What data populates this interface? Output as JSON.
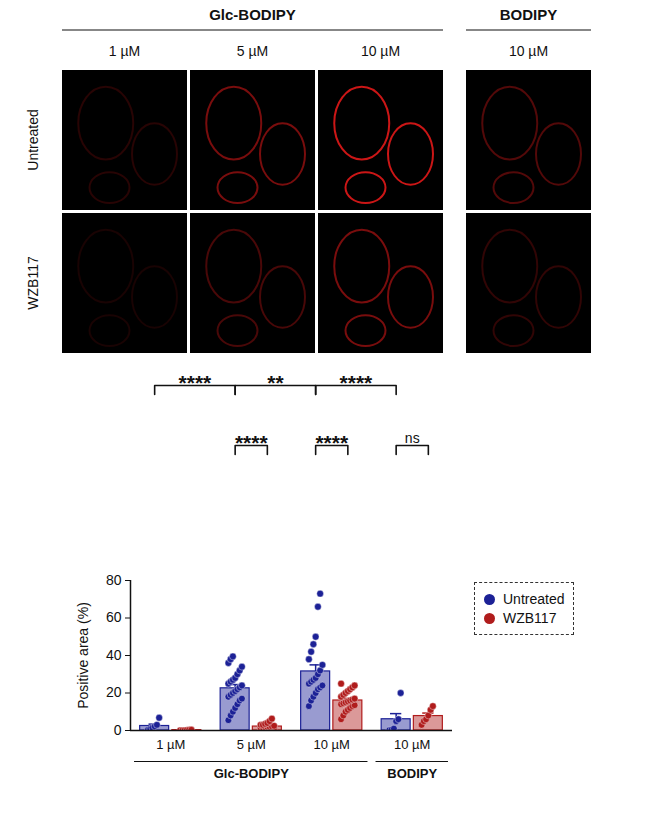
{
  "image_grid": {
    "column_groups": [
      {
        "label": "Glc-BODIPY",
        "columns": [
          "1 µM",
          "5 µM",
          "10 µM"
        ]
      },
      {
        "label": "BODIPY",
        "columns": [
          "10 µM"
        ]
      }
    ],
    "rows": [
      "Untreated",
      "WZB117"
    ]
  },
  "chart_data": {
    "type": "bar",
    "categories": [
      "1 µM",
      "5 µM",
      "10 µM",
      "10 µM"
    ],
    "category_groups": [
      {
        "label": "Glc-BODIPY",
        "categories": [
          0,
          1,
          2
        ]
      },
      {
        "label": "BODIPY",
        "categories": [
          3
        ]
      }
    ],
    "y_label": "Positive area (%)",
    "ylim": [
      0,
      80
    ],
    "yticks": [
      0,
      20,
      40,
      60,
      80
    ],
    "legend": "right",
    "series": [
      {
        "name": "Untreated",
        "color": "#1c2196",
        "values": [
          2.4,
          22.5,
          31.5,
          6
        ],
        "errors": [
          1.0,
          2.0,
          3.5,
          3.0
        ],
        "points": [
          [
            0.3,
            0.8,
            1.5,
            2.2,
            3.0,
            6.8
          ],
          [
            5.5,
            8,
            10,
            12,
            14,
            16,
            17,
            18,
            19,
            20,
            21,
            22,
            23,
            24,
            25,
            26,
            27,
            28,
            30,
            32,
            34,
            36,
            38,
            39.5
          ],
          [
            13,
            16,
            18,
            20,
            22,
            23,
            24,
            25,
            26,
            27,
            28,
            30,
            32,
            35,
            38,
            42,
            46,
            50,
            66,
            73
          ],
          [
            0.2,
            0.5,
            1,
            5,
            6,
            20
          ]
        ]
      },
      {
        "name": "WZB117",
        "color": "#b01c1c",
        "values": [
          0.2,
          2.1,
          16,
          7.7
        ],
        "errors": [
          0.1,
          0.4,
          1.1,
          1.6
        ],
        "points": [
          [
            0,
            0,
            0.1,
            0.2,
            0.3,
            0.4
          ],
          [
            0.2,
            0.4,
            0.6,
            0.8,
            1,
            1,
            1.2,
            1.4,
            1.5,
            1.8,
            2,
            2,
            2.2,
            2.5,
            3,
            3,
            3.5,
            4,
            5,
            6.3
          ],
          [
            6,
            8,
            10,
            11,
            12,
            13,
            13.5,
            14,
            14.5,
            15,
            15.5,
            16,
            16.5,
            17,
            18,
            19,
            20,
            21,
            22,
            23,
            24,
            25
          ],
          [
            3,
            5,
            6,
            8,
            11,
            13
          ]
        ]
      }
    ],
    "comparisons": [
      {
        "from": {
          "category": 0,
          "series": "Untreated"
        },
        "to": {
          "category": 1,
          "series": "Untreated"
        },
        "label": "****"
      },
      {
        "from": {
          "category": 1,
          "series": "Untreated"
        },
        "to": {
          "category": 2,
          "series": "Untreated"
        },
        "label": "**"
      },
      {
        "from": {
          "category": 2,
          "series": "Untreated"
        },
        "to": {
          "category": 3,
          "series": "Untreated"
        },
        "label": "****"
      },
      {
        "from": {
          "category": 1,
          "series": "Untreated"
        },
        "to": {
          "category": 1,
          "series": "WZB117"
        },
        "label": "****"
      },
      {
        "from": {
          "category": 2,
          "series": "Untreated"
        },
        "to": {
          "category": 2,
          "series": "WZB117"
        },
        "label": "****"
      },
      {
        "from": {
          "category": 3,
          "series": "Untreated"
        },
        "to": {
          "category": 3,
          "series": "WZB117"
        },
        "label": "ns"
      }
    ]
  }
}
